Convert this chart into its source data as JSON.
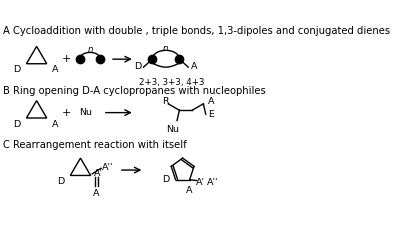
{
  "title_A": "A Cycloaddition with double , triple bonds, 1,3-dipoles and conjugated dienes",
  "title_B": "B Ring opening D-A cyclopropanes with nucleophiles",
  "title_C": "C Rearrangement reaction with itself",
  "label_2n3": "2+3, 3+3, 4+3",
  "bg_color": "#ffffff",
  "line_color": "#000000",
  "text_color": "#000000",
  "figsize": [
    4.01,
    2.38
  ],
  "dpi": 100
}
